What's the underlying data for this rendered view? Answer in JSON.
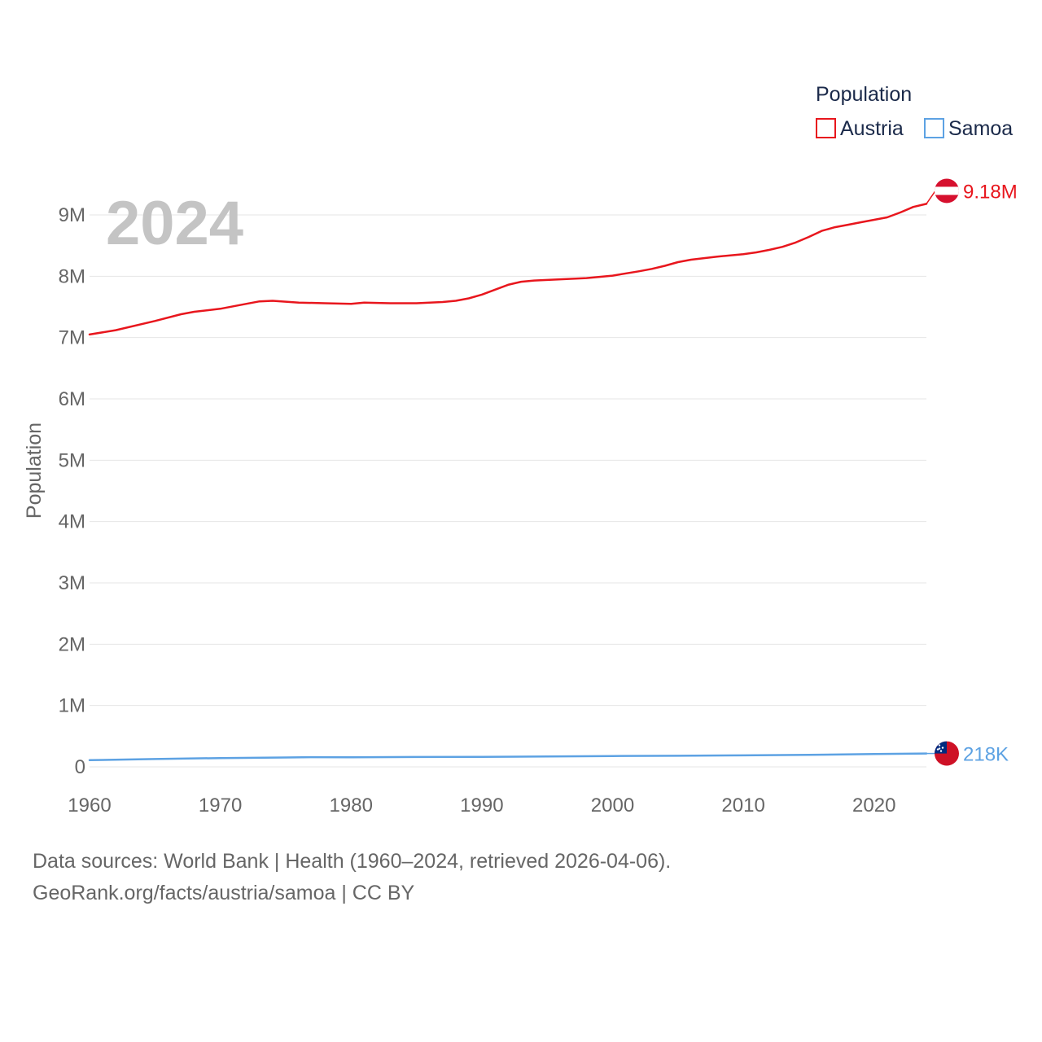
{
  "chart_data": {
    "type": "line",
    "legend_title": "Population",
    "watermark_year": "2024",
    "ylabel": "Population",
    "xlabel": "",
    "xlim": [
      1960,
      2024
    ],
    "ylim": [
      0,
      9000000
    ],
    "x_ticks": [
      1960,
      1970,
      1980,
      1990,
      2000,
      2010,
      2020
    ],
    "y_ticks": [
      {
        "value": 0,
        "label": "0"
      },
      {
        "value": 1000000,
        "label": "1M"
      },
      {
        "value": 2000000,
        "label": "2M"
      },
      {
        "value": 3000000,
        "label": "3M"
      },
      {
        "value": 4000000,
        "label": "4M"
      },
      {
        "value": 5000000,
        "label": "5M"
      },
      {
        "value": 6000000,
        "label": "6M"
      },
      {
        "value": 7000000,
        "label": "7M"
      },
      {
        "value": 8000000,
        "label": "8M"
      },
      {
        "value": 9000000,
        "label": "9M"
      }
    ],
    "legend_placement": "top-right",
    "series": [
      {
        "name": "Austria",
        "color": "#e8161d",
        "end_label": "9.18M",
        "flag_icon": "austria-flag-icon",
        "points": [
          [
            1960,
            7050000
          ],
          [
            1962,
            7120000
          ],
          [
            1965,
            7270000
          ],
          [
            1967,
            7380000
          ],
          [
            1968,
            7420000
          ],
          [
            1970,
            7470000
          ],
          [
            1972,
            7550000
          ],
          [
            1973,
            7590000
          ],
          [
            1974,
            7600000
          ],
          [
            1976,
            7570000
          ],
          [
            1978,
            7560000
          ],
          [
            1980,
            7550000
          ],
          [
            1981,
            7570000
          ],
          [
            1983,
            7560000
          ],
          [
            1985,
            7560000
          ],
          [
            1987,
            7580000
          ],
          [
            1988,
            7600000
          ],
          [
            1989,
            7640000
          ],
          [
            1990,
            7700000
          ],
          [
            1991,
            7780000
          ],
          [
            1992,
            7860000
          ],
          [
            1993,
            7910000
          ],
          [
            1994,
            7930000
          ],
          [
            1996,
            7950000
          ],
          [
            1998,
            7970000
          ],
          [
            2000,
            8010000
          ],
          [
            2002,
            8080000
          ],
          [
            2003,
            8120000
          ],
          [
            2004,
            8170000
          ],
          [
            2005,
            8230000
          ],
          [
            2006,
            8270000
          ],
          [
            2008,
            8320000
          ],
          [
            2010,
            8360000
          ],
          [
            2011,
            8390000
          ],
          [
            2012,
            8430000
          ],
          [
            2013,
            8480000
          ],
          [
            2014,
            8550000
          ],
          [
            2015,
            8640000
          ],
          [
            2016,
            8740000
          ],
          [
            2017,
            8800000
          ],
          [
            2018,
            8840000
          ],
          [
            2019,
            8880000
          ],
          [
            2020,
            8920000
          ],
          [
            2021,
            8960000
          ],
          [
            2022,
            9040000
          ],
          [
            2023,
            9130000
          ],
          [
            2024,
            9180000
          ]
        ]
      },
      {
        "name": "Samoa",
        "color": "#5da2e3",
        "end_label": "218K",
        "flag_icon": "samoa-flag-icon",
        "points": [
          [
            1960,
            109000
          ],
          [
            1965,
            127000
          ],
          [
            1970,
            143000
          ],
          [
            1975,
            152000
          ],
          [
            1977,
            158000
          ],
          [
            1980,
            157000
          ],
          [
            1985,
            160000
          ],
          [
            1990,
            162000
          ],
          [
            1995,
            170000
          ],
          [
            2000,
            176000
          ],
          [
            2005,
            180000
          ],
          [
            2010,
            187000
          ],
          [
            2015,
            195000
          ],
          [
            2020,
            209000
          ],
          [
            2024,
            218000
          ]
        ]
      }
    ]
  },
  "footer": {
    "line1": "Data sources: World Bank | Health (1960–2024, retrieved 2026-04-06).",
    "line2": "GeoRank.org/facts/austria/samoa | CC BY"
  }
}
